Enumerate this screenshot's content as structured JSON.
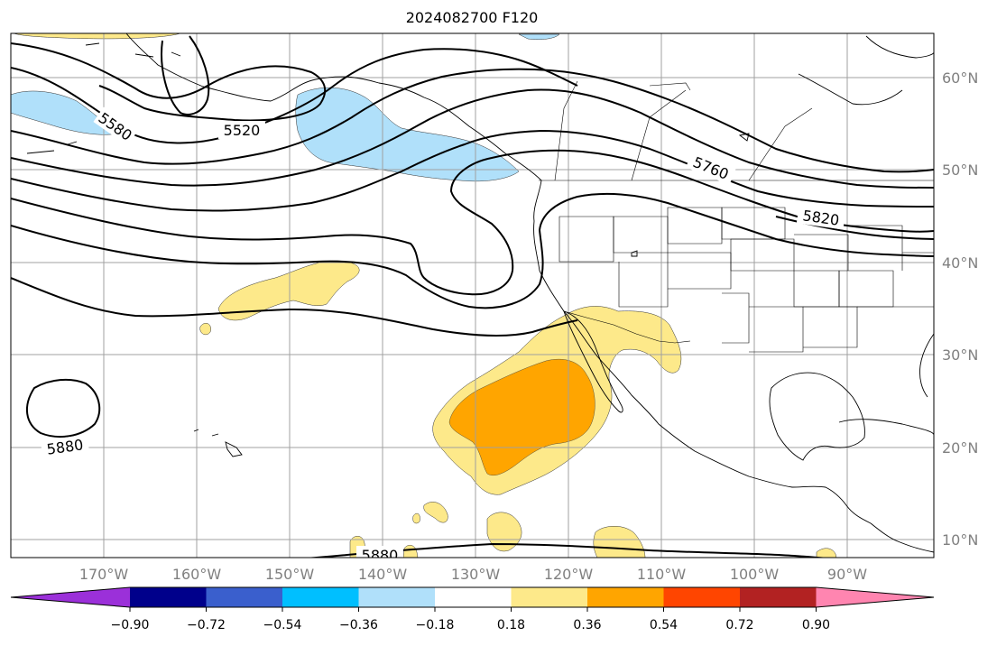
{
  "map": {
    "title": "2024082700 F120",
    "lat_labels": [
      "60°N",
      "50°N",
      "40°N",
      "30°N",
      "20°N",
      "10°N"
    ],
    "lon_labels": [
      "170°W",
      "160°W",
      "150°W",
      "140°W",
      "130°W",
      "120°W",
      "110°W",
      "100°W",
      "90°W"
    ],
    "contour_labels": [
      "5580",
      "5520",
      "5760",
      "5820",
      "5880",
      "5880"
    ],
    "gridline_color": "#a0a0a0",
    "contour_color": "#000000",
    "tick_label_color": "#808080"
  },
  "colorbar": {
    "tick_labels": [
      "−0.90",
      "−0.72",
      "−0.54",
      "−0.36",
      "−0.18",
      "0.18",
      "0.36",
      "0.54",
      "0.72",
      "0.90"
    ],
    "colors": [
      "#9b30d9",
      "#00008b",
      "#3a5fcd",
      "#00bfff",
      "#b0e0fa",
      "#ffffff",
      "#fde98a",
      "#ffa500",
      "#ff4500",
      "#b22222",
      "#ff85b0"
    ]
  }
}
